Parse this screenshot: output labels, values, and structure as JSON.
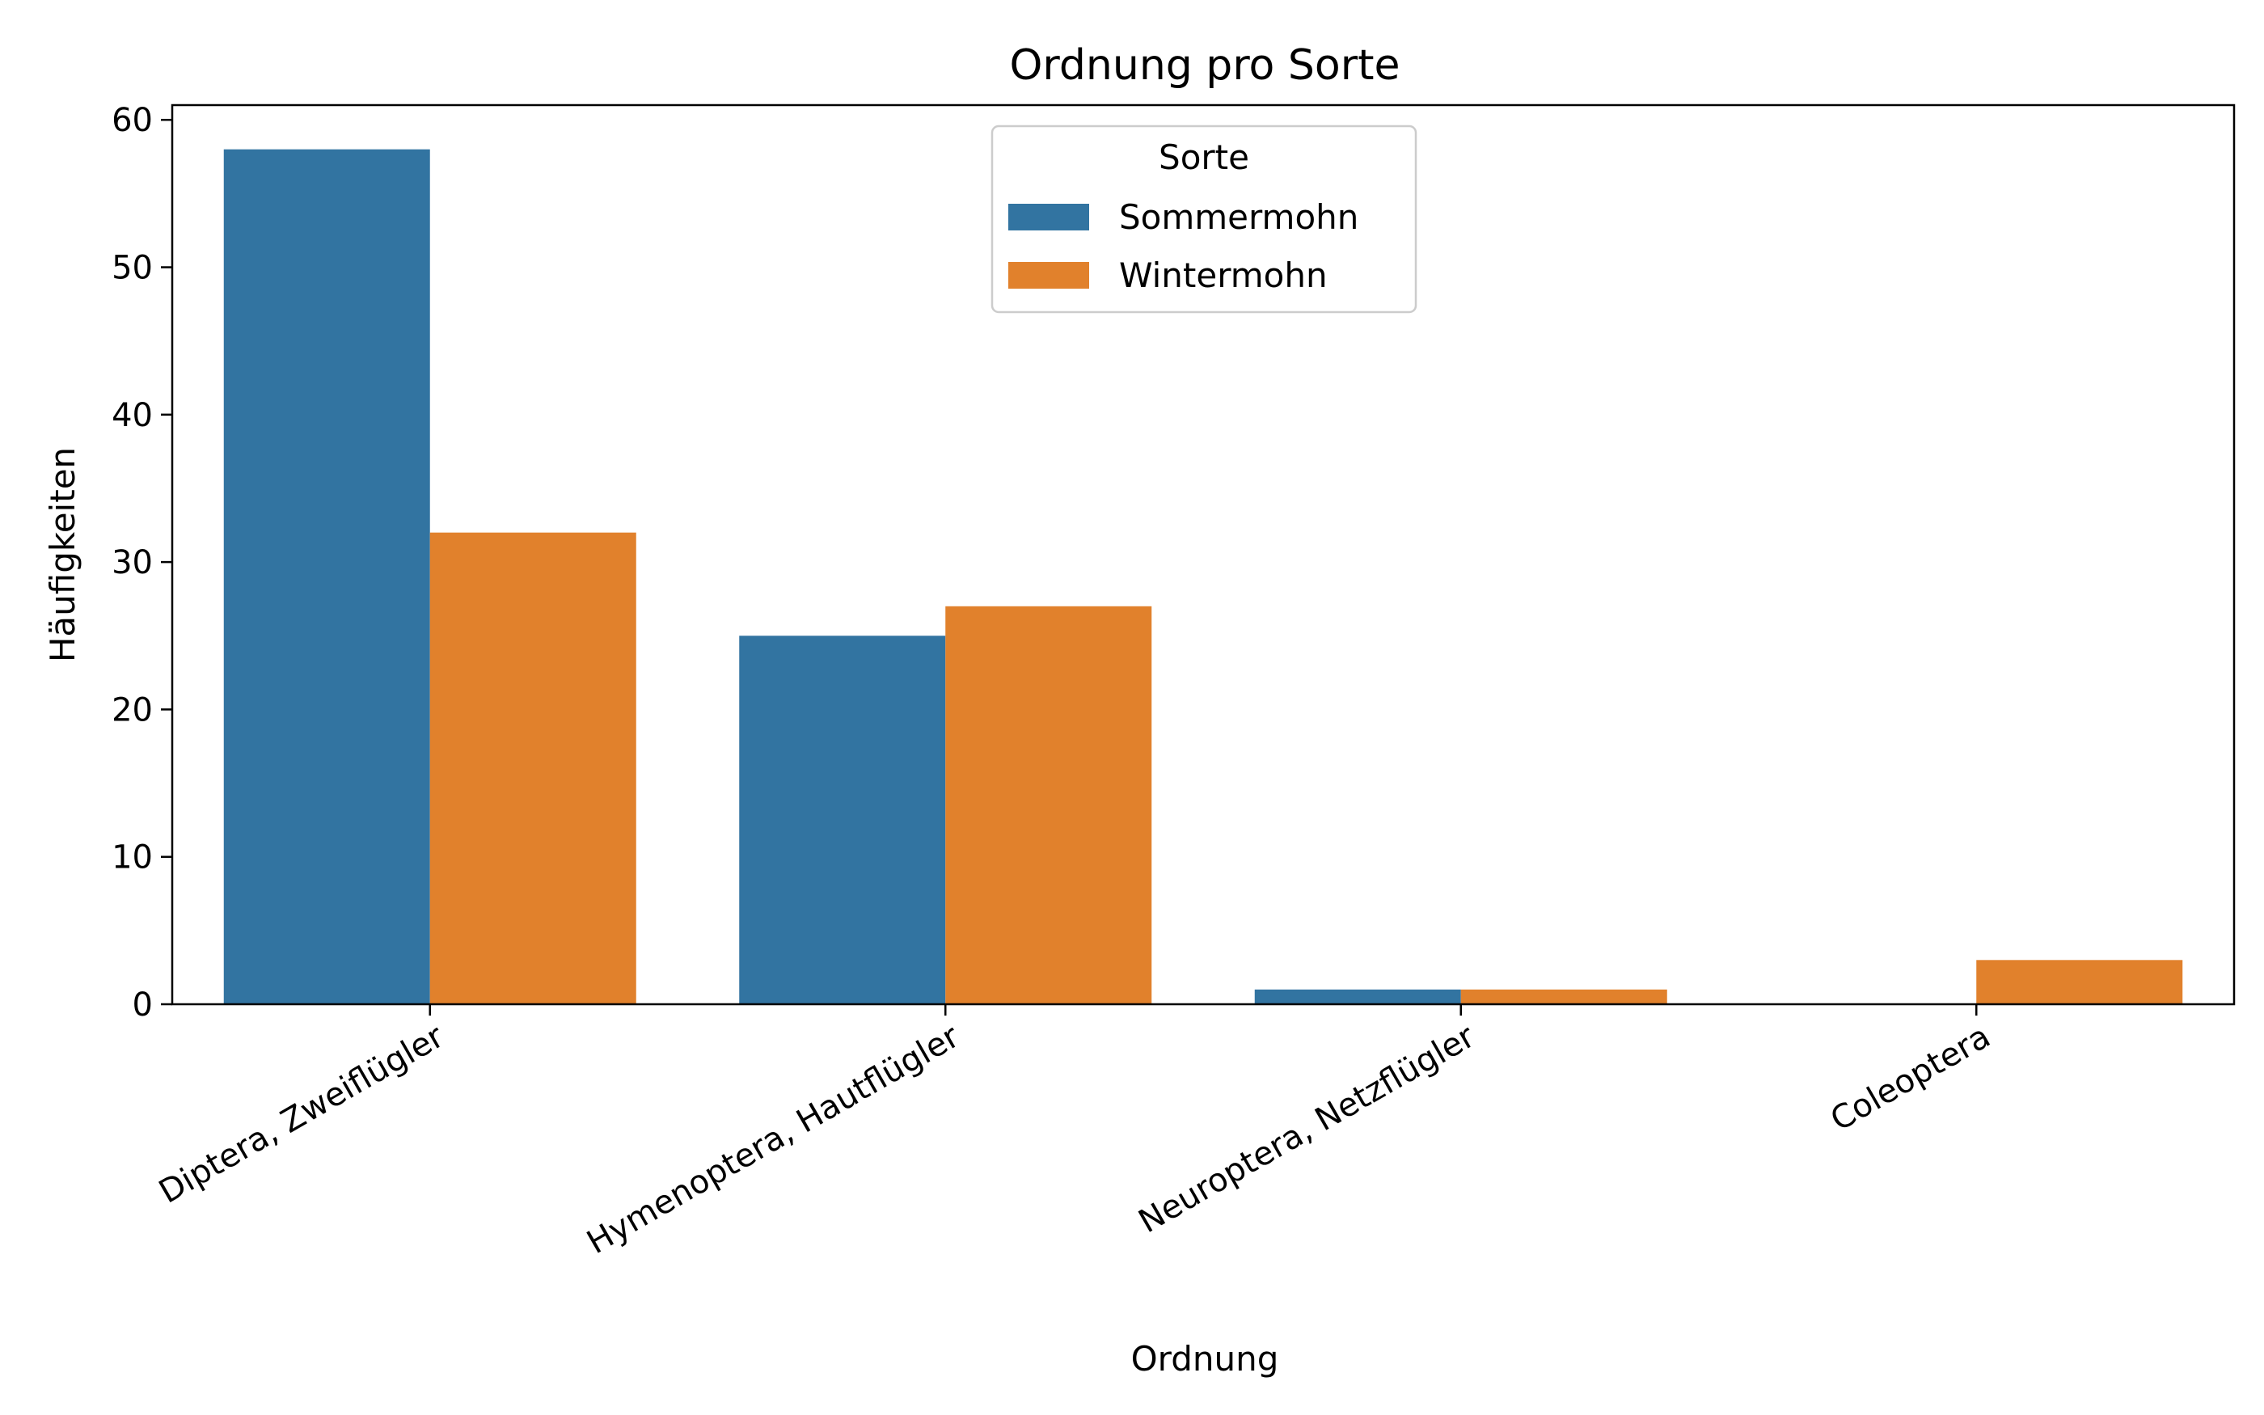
{
  "chart_data": {
    "type": "bar",
    "title": "Ordnung pro Sorte",
    "xlabel": "Ordnung",
    "ylabel": "Häufigkeiten",
    "categories": [
      "Diptera, Zweiflügler",
      "Hymenoptera, Hautflügler",
      "Neuroptera, Netzflügler",
      "Coleoptera"
    ],
    "series": [
      {
        "name": "Sommermohn",
        "color": "#3274a1",
        "values": [
          58,
          25,
          1,
          0
        ]
      },
      {
        "name": "Wintermohn",
        "color": "#e1812c",
        "values": [
          32,
          27,
          1,
          3
        ]
      }
    ],
    "ylim": [
      0,
      61
    ],
    "yticks": [
      0,
      10,
      20,
      30,
      40,
      50,
      60
    ],
    "grid": false,
    "legend": {
      "title": "Sorte",
      "placement": "top-center"
    }
  }
}
